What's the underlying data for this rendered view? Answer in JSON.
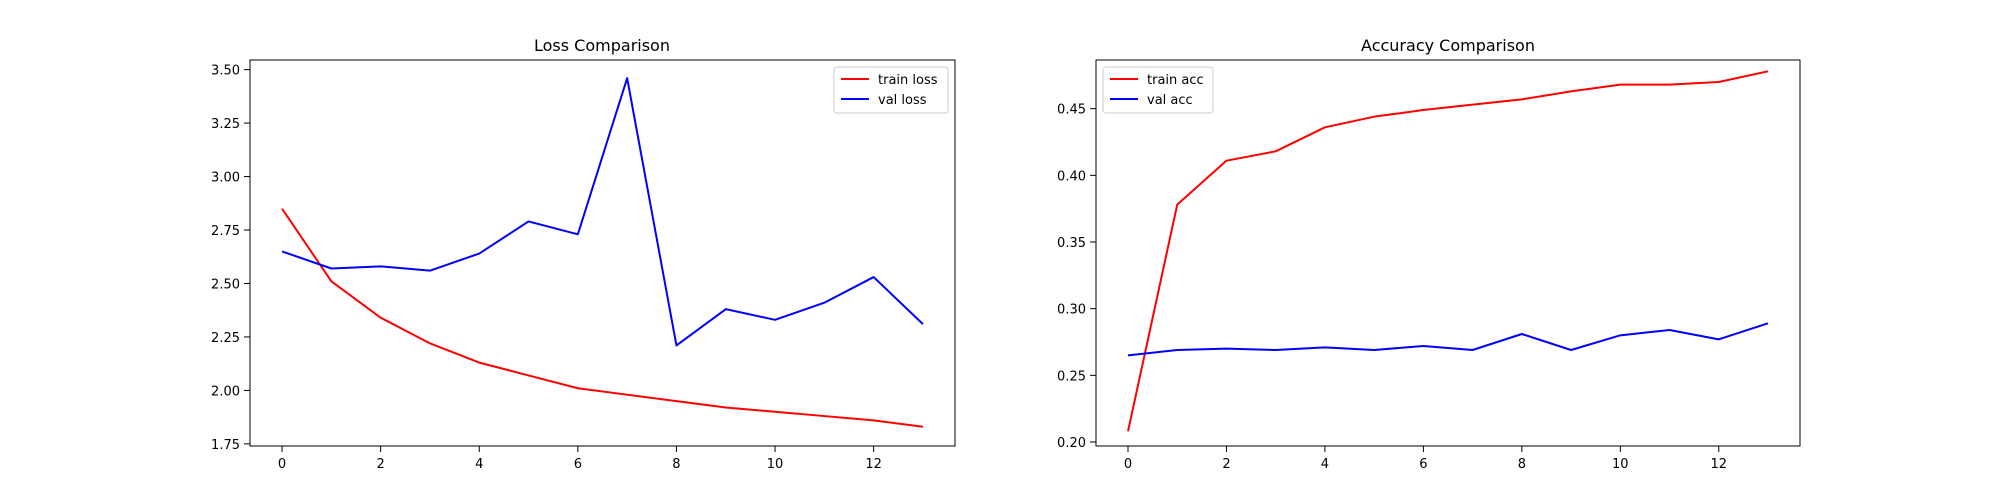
{
  "chart_data": [
    {
      "type": "line",
      "title": "Loss Comparison",
      "xlabel": "",
      "ylabel": "",
      "x": [
        0,
        1,
        2,
        3,
        4,
        5,
        6,
        7,
        8,
        9,
        10,
        11,
        12,
        13
      ],
      "xlim": [
        -0.65,
        13.65
      ],
      "ylim": [
        1.74,
        3.545
      ],
      "xticks": [
        0,
        2,
        4,
        6,
        8,
        10,
        12
      ],
      "xtick_labels": [
        "0",
        "2",
        "4",
        "6",
        "8",
        "10",
        "12"
      ],
      "yticks": [
        1.75,
        2.0,
        2.25,
        2.5,
        2.75,
        3.0,
        3.25,
        3.5
      ],
      "ytick_labels": [
        "1.75",
        "2.00",
        "2.25",
        "2.50",
        "2.75",
        "3.00",
        "3.25",
        "3.50"
      ],
      "grid": false,
      "legend_position": "top-right",
      "series": [
        {
          "name": "train loss",
          "color": "#ff0000",
          "values": [
            2.85,
            2.51,
            2.34,
            2.22,
            2.13,
            2.07,
            2.01,
            1.98,
            1.95,
            1.92,
            1.9,
            1.88,
            1.86,
            1.83
          ]
        },
        {
          "name": "val loss",
          "color": "#0000ff",
          "values": [
            2.65,
            2.57,
            2.58,
            2.56,
            2.64,
            2.79,
            2.73,
            3.46,
            2.21,
            2.38,
            2.33,
            2.41,
            2.53,
            2.31
          ]
        }
      ]
    },
    {
      "type": "line",
      "title": "Accuracy Comparison",
      "xlabel": "",
      "ylabel": "",
      "x": [
        0,
        1,
        2,
        3,
        4,
        5,
        6,
        7,
        8,
        9,
        10,
        11,
        12,
        13
      ],
      "xlim": [
        -0.65,
        13.65
      ],
      "ylim": [
        0.197,
        0.4865
      ],
      "xticks": [
        0,
        2,
        4,
        6,
        8,
        10,
        12
      ],
      "xtick_labels": [
        "0",
        "2",
        "4",
        "6",
        "8",
        "10",
        "12"
      ],
      "yticks": [
        0.2,
        0.25,
        0.3,
        0.35,
        0.4,
        0.45
      ],
      "ytick_labels": [
        "0.20",
        "0.25",
        "0.30",
        "0.35",
        "0.40",
        "0.45"
      ],
      "grid": false,
      "legend_position": "top-left",
      "series": [
        {
          "name": "train acc",
          "color": "#ff0000",
          "values": [
            0.208,
            0.378,
            0.411,
            0.418,
            0.436,
            0.444,
            0.449,
            0.453,
            0.457,
            0.463,
            0.468,
            0.468,
            0.47,
            0.478
          ]
        },
        {
          "name": "val acc",
          "color": "#0000ff",
          "values": [
            0.265,
            0.269,
            0.27,
            0.269,
            0.271,
            0.269,
            0.272,
            0.269,
            0.281,
            0.269,
            0.28,
            0.284,
            0.277,
            0.289
          ]
        }
      ]
    }
  ]
}
